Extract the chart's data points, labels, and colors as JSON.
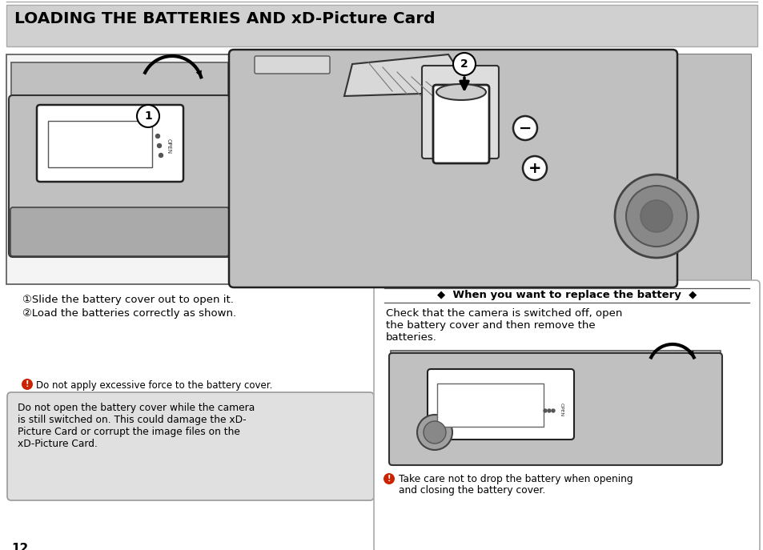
{
  "title": "LOADING THE BATTERIES AND xD-Picture Card",
  "page_bg": "#ffffff",
  "title_bg": "#d0d0d0",
  "page_num": "12",
  "step1_line1": "①Slide the battery cover out to open it.",
  "step1_line2": "②Load the batteries correctly as shown.",
  "warning_icon_text": "Do not apply excessive force to the battery cover.",
  "warning_box_line1": "Do not open the battery cover while the camera",
  "warning_box_line2": "is still switched on. This could damage the xD-",
  "warning_box_line3": "Picture Card or corrupt the image files on the",
  "warning_box_line4": "xD-Picture Card.",
  "replace_title": "◆  When you want to replace the battery  ◆",
  "replace_body_line1": "Check that the camera is switched off, open",
  "replace_body_line2": "the battery cover and then remove the",
  "replace_body_line3": "batteries.",
  "take_care_line1": "Take care not to drop the battery when opening",
  "take_care_line2": "and closing the battery cover.",
  "img_bg": "#e8e8e8",
  "cam_gray": "#c0c0c0",
  "cam_dark": "#888888",
  "cam_light": "#d8d8d8",
  "white": "#ffffff",
  "border": "#555555",
  "text_color": "#000000",
  "warn_box_bg": "#e0e0e0",
  "replace_box_bg": "#f0f0f0"
}
